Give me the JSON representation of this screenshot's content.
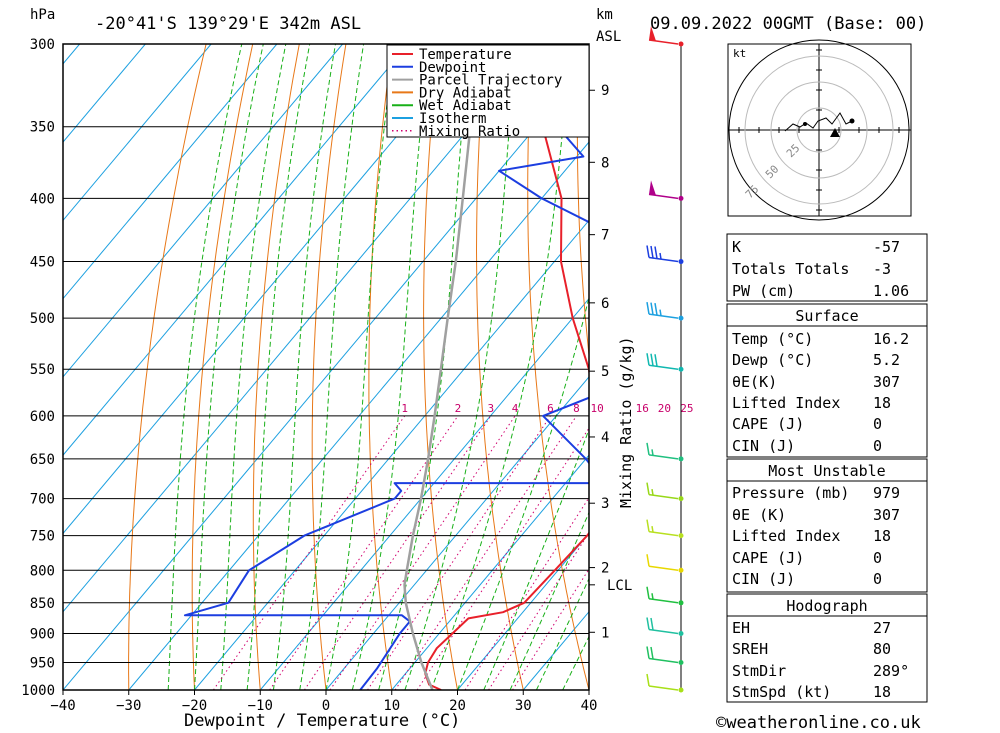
{
  "header": {
    "location": "-20°41'S 139°29'E 342m ASL",
    "date": "09.09.2022 00GMT (Base: 00)",
    "left_unit": "hPa",
    "right_unit_km": "km",
    "right_unit_asl": "ASL"
  },
  "footer": {
    "xlabel": "Dewpoint / Temperature (°C)",
    "copyright": "©weatheronline.co.uk",
    "mixing_axis_label": "Mixing Ratio (g/kg)"
  },
  "chart_data": {
    "type": "line",
    "title": "-20°41'S 139°29'E 342m ASL",
    "xlabel": "Dewpoint / Temperature (°C)",
    "ylabel": "hPa",
    "x_ticks": [
      -40,
      -30,
      -20,
      -10,
      0,
      10,
      20,
      30,
      40
    ],
    "pressure_levels": [
      300,
      350,
      400,
      450,
      500,
      550,
      600,
      650,
      700,
      750,
      800,
      850,
      900,
      950,
      1000
    ],
    "skew": "skew-T log-p",
    "km_ticks": [
      {
        "label": "1",
        "p": 898
      },
      {
        "label": "2",
        "p": 796
      },
      {
        "label": "3",
        "p": 706
      },
      {
        "label": "4",
        "p": 624
      },
      {
        "label": "5",
        "p": 552
      },
      {
        "label": "6",
        "p": 486
      },
      {
        "label": "7",
        "p": 428
      },
      {
        "label": "8",
        "p": 374
      },
      {
        "label": "9",
        "p": 327
      }
    ],
    "lcl": {
      "label": "LCL",
      "p": 822
    },
    "mixing_ratio_labels": [
      "1",
      "2",
      "3",
      "4",
      "6",
      "8",
      "10",
      "16",
      "20",
      "25"
    ],
    "mixing_ratio_values": [
      1,
      2,
      3,
      4,
      6,
      8,
      10,
      16,
      20,
      25
    ],
    "legend": [
      {
        "name": "Temperature",
        "color": "#e8202a",
        "style": "solid"
      },
      {
        "name": "Dewpoint",
        "color": "#1c3ee0",
        "style": "solid"
      },
      {
        "name": "Parcel Trajectory",
        "color": "#a0a0a0",
        "style": "solid"
      },
      {
        "name": "Dry Adiabat",
        "color": "#e87818",
        "style": "solid"
      },
      {
        "name": "Wet Adiabat",
        "color": "#18b018",
        "style": "solid"
      },
      {
        "name": "Isotherm",
        "color": "#1ca0e0",
        "style": "solid"
      },
      {
        "name": "Mixing Ratio",
        "color": "#d0006e",
        "style": "dotted"
      }
    ],
    "series": [
      {
        "name": "Temperature",
        "color": "#e8202a",
        "points": [
          [
            1000,
            17.5
          ],
          [
            990,
            15.0
          ],
          [
            970,
            13.0
          ],
          [
            950,
            12.0
          ],
          [
            925,
            11.5
          ],
          [
            900,
            12.0
          ],
          [
            875,
            12.5
          ],
          [
            865,
            17.0
          ],
          [
            850,
            19.0
          ],
          [
            800,
            19.5
          ],
          [
            750,
            20.0
          ],
          [
            700,
            19.5
          ],
          [
            650,
            13.0
          ],
          [
            600,
            6.0
          ],
          [
            550,
            -1.0
          ],
          [
            500,
            -10.0
          ],
          [
            450,
            -19.0
          ],
          [
            400,
            -27.0
          ],
          [
            350,
            -39.0
          ],
          [
            320,
            -47.0
          ],
          [
            300,
            -52.0
          ]
        ]
      },
      {
        "name": "Dewpoint",
        "color": "#1c3ee0",
        "points": [
          [
            1000,
            5.2
          ],
          [
            960,
            5.0
          ],
          [
            900,
            4.0
          ],
          [
            880,
            4.0
          ],
          [
            870,
            2.0
          ],
          [
            870,
            -31.0
          ],
          [
            850,
            -26.0
          ],
          [
            800,
            -27.0
          ],
          [
            750,
            -23.0
          ],
          [
            700,
            -14.0
          ],
          [
            690,
            -14.0
          ],
          [
            680,
            -16.0
          ],
          [
            680,
            16.0
          ],
          [
            650,
            10.0
          ],
          [
            600,
            -2.0
          ],
          [
            550,
            10.0
          ],
          [
            500,
            -1.0
          ],
          [
            480,
            -2.0
          ],
          [
            450,
            -5.0
          ],
          [
            440,
            -8.0
          ],
          [
            400,
            -30.0
          ],
          [
            380,
            -40.0
          ],
          [
            370,
            -29.0
          ],
          [
            330,
            -45.0
          ],
          [
            320,
            -34.0
          ],
          [
            310,
            -51.0
          ],
          [
            302,
            -45.0
          ],
          [
            300,
            -68.0
          ]
        ]
      },
      {
        "name": "Parcel Trajectory",
        "color": "#a0a0a0",
        "points": [
          [
            1000,
            16.2
          ],
          [
            950,
            11.0
          ],
          [
            900,
            6.0
          ],
          [
            850,
            1.0
          ],
          [
            822,
            -1.5
          ],
          [
            800,
            -3.0
          ],
          [
            750,
            -6.5
          ],
          [
            700,
            -10.0
          ],
          [
            650,
            -14.0
          ],
          [
            600,
            -18.5
          ],
          [
            550,
            -23.5
          ],
          [
            500,
            -29.0
          ],
          [
            450,
            -35.0
          ],
          [
            400,
            -42.0
          ],
          [
            350,
            -50.0
          ],
          [
            300,
            -59.0
          ]
        ]
      }
    ],
    "wind_barbs": [
      {
        "p": 300,
        "speed_kt": 50,
        "color": "#e8202a"
      },
      {
        "p": 400,
        "speed_kt": 50,
        "color": "#b0008a"
      },
      {
        "p": 450,
        "speed_kt": 35,
        "color": "#1c3ee0"
      },
      {
        "p": 500,
        "speed_kt": 35,
        "color": "#1ca0e0"
      },
      {
        "p": 550,
        "speed_kt": 30,
        "color": "#10b8b0"
      },
      {
        "p": 650,
        "speed_kt": 15,
        "color": "#20c080"
      },
      {
        "p": 700,
        "speed_kt": 15,
        "color": "#98d818"
      },
      {
        "p": 750,
        "speed_kt": 15,
        "color": "#b8e020"
      },
      {
        "p": 800,
        "speed_kt": 10,
        "color": "#e8d800"
      },
      {
        "p": 850,
        "speed_kt": 15,
        "color": "#20c040"
      },
      {
        "p": 900,
        "speed_kt": 20,
        "color": "#20c0a0"
      },
      {
        "p": 950,
        "speed_kt": 20,
        "color": "#20c060"
      },
      {
        "p": 1000,
        "speed_kt": 10,
        "color": "#a8e018"
      }
    ]
  },
  "hodograph": {
    "unit": "kt",
    "ring_labels": [
      "25",
      "50",
      "75"
    ]
  },
  "tables": {
    "indices": [
      {
        "label": "K",
        "value": "-57"
      },
      {
        "label": "Totals Totals",
        "value": "-3"
      },
      {
        "label": "PW (cm)",
        "value": "1.06"
      }
    ],
    "surface": {
      "title": "Surface",
      "rows": [
        {
          "label": "Temp (°C)",
          "value": "16.2"
        },
        {
          "label": "Dewp (°C)",
          "value": "5.2"
        },
        {
          "label": "θE(K)",
          "value": "307"
        },
        {
          "label": "Lifted Index",
          "value": "18"
        },
        {
          "label": "CAPE (J)",
          "value": "0"
        },
        {
          "label": "CIN (J)",
          "value": "0"
        }
      ]
    },
    "most_unstable": {
      "title": "Most Unstable",
      "rows": [
        {
          "label": "Pressure (mb)",
          "value": "979"
        },
        {
          "label": "θE (K)",
          "value": "307"
        },
        {
          "label": "Lifted Index",
          "value": "18"
        },
        {
          "label": "CAPE (J)",
          "value": "0"
        },
        {
          "label": "CIN (J)",
          "value": "0"
        }
      ]
    },
    "hodograph": {
      "title": "Hodograph",
      "rows": [
        {
          "label": "EH",
          "value": "27"
        },
        {
          "label": "SREH",
          "value": "80"
        },
        {
          "label": "StmDir",
          "value": "289°"
        },
        {
          "label": "StmSpd (kt)",
          "value": "18"
        }
      ]
    }
  }
}
